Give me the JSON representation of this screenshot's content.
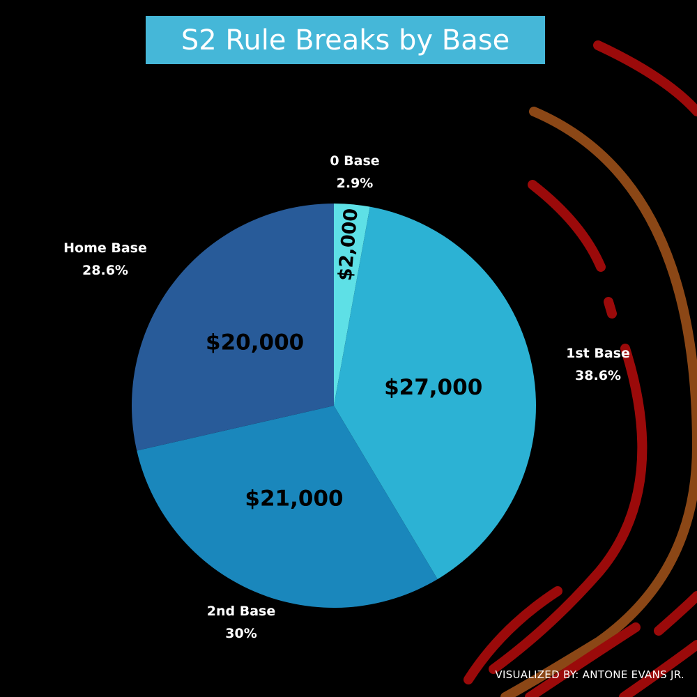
{
  "title": "S2 Rule Breaks by Base",
  "credit": "VISUALIZED BY: ANTONE EVANS JR.",
  "chart_data": {
    "type": "pie",
    "title": "S2 Rule Breaks by Base",
    "start_angle_deg": 0,
    "direction": "clockwise",
    "legend": "none",
    "slices": [
      {
        "name": "0 Base",
        "value": 2000,
        "value_label": "$2,000",
        "percent_label": "2.9%",
        "color": "#5ee0e6"
      },
      {
        "name": "1st Base",
        "value": 27000,
        "value_label": "$27,000",
        "percent_label": "38.6%",
        "color": "#2cb2d4"
      },
      {
        "name": "2nd Base",
        "value": 21000,
        "value_label": "$21,000",
        "percent_label": "30%",
        "color": "#1a87bc"
      },
      {
        "name": "Home Base",
        "value": 20000,
        "value_label": "$20,000",
        "percent_label": "28.6%",
        "color": "#285b99"
      }
    ]
  },
  "decoration": {
    "stripe_colors": [
      "#9b0a0a",
      "#8b4716"
    ]
  }
}
